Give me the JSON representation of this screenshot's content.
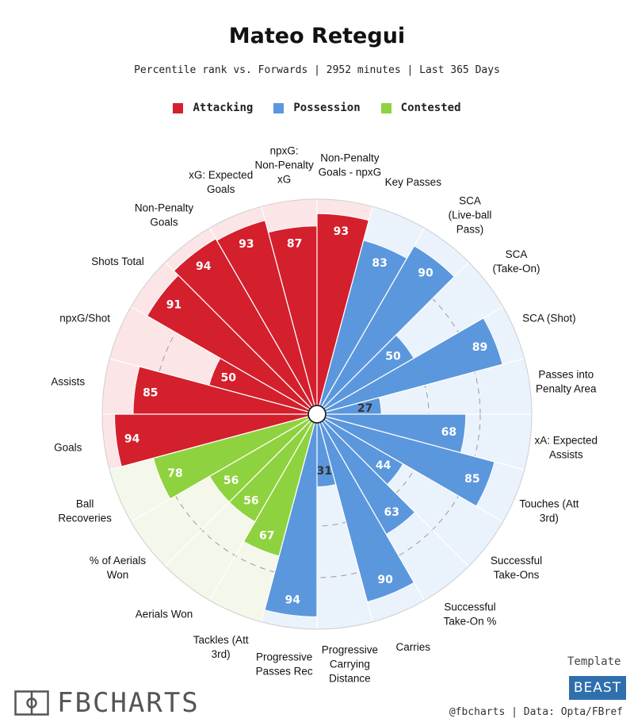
{
  "header": {
    "title": "Mateo Retegui",
    "subtitle": "Percentile rank vs. Forwards | 2952 minutes | Last 365 Days"
  },
  "colors": {
    "attacking": "#d41f2d",
    "possession": "#5b97dd",
    "contested": "#8fd23f",
    "attacking_bg": "#fbe5e7",
    "possession_bg": "#eaf2fb",
    "contested_bg": "#f3f8ea"
  },
  "footer": {
    "brand": "FBCHARTS",
    "template_label": "Template",
    "template_name": "BEAST",
    "credit": "@fbcharts | Data: Opta/FBref"
  },
  "chart_data": {
    "type": "polar-bar",
    "legend": [
      {
        "name": "Attacking",
        "color": "#d41f2d"
      },
      {
        "name": "Possession",
        "color": "#5b97dd"
      },
      {
        "name": "Contested",
        "color": "#8fd23f"
      }
    ],
    "range": [
      0,
      100
    ],
    "categories": [
      {
        "label": "Non-Penalty Goals - npxG",
        "value": 93,
        "group": "Attacking"
      },
      {
        "label": "Key Passes",
        "value": 83,
        "group": "Possession"
      },
      {
        "label": "SCA (Live-ball Pass)",
        "value": 90,
        "group": "Possession"
      },
      {
        "label": "SCA (Take-On)",
        "value": 50,
        "group": "Possession"
      },
      {
        "label": "SCA (Shot)",
        "value": 89,
        "group": "Possession"
      },
      {
        "label": "Passes into Penalty Area",
        "value": 27,
        "group": "Possession"
      },
      {
        "label": "xA: Expected Assists",
        "value": 68,
        "group": "Possession"
      },
      {
        "label": "Touches (Att 3rd)",
        "value": 85,
        "group": "Possession"
      },
      {
        "label": "Successful Take-Ons",
        "value": 44,
        "group": "Possession"
      },
      {
        "label": "Successful Take-On %",
        "value": 63,
        "group": "Possession"
      },
      {
        "label": "Carries",
        "value": 90,
        "group": "Possession"
      },
      {
        "label": "Progressive Carrying Distance",
        "value": 31,
        "group": "Possession"
      },
      {
        "label": "Progressive Passes Rec",
        "value": 94,
        "group": "Possession"
      },
      {
        "label": "Tackles (Att 3rd)",
        "value": 67,
        "group": "Contested"
      },
      {
        "label": "Aerials Won",
        "value": 56,
        "group": "Contested"
      },
      {
        "label": "% of Aerials Won",
        "value": 56,
        "group": "Contested"
      },
      {
        "label": "Ball Recoveries",
        "value": 78,
        "group": "Contested"
      },
      {
        "label": "Goals",
        "value": 94,
        "group": "Attacking"
      },
      {
        "label": "Assists",
        "value": 85,
        "group": "Attacking"
      },
      {
        "label": "npxG/Shot",
        "value": 50,
        "group": "Attacking"
      },
      {
        "label": "Shots Total",
        "value": 91,
        "group": "Attacking"
      },
      {
        "label": "Non-Penalty Goals",
        "value": 94,
        "group": "Attacking"
      },
      {
        "label": "xG: Expected Goals",
        "value": 93,
        "group": "Attacking"
      },
      {
        "label": "npxG: Non-Penalty xG",
        "value": 87,
        "group": "Attacking"
      }
    ]
  }
}
